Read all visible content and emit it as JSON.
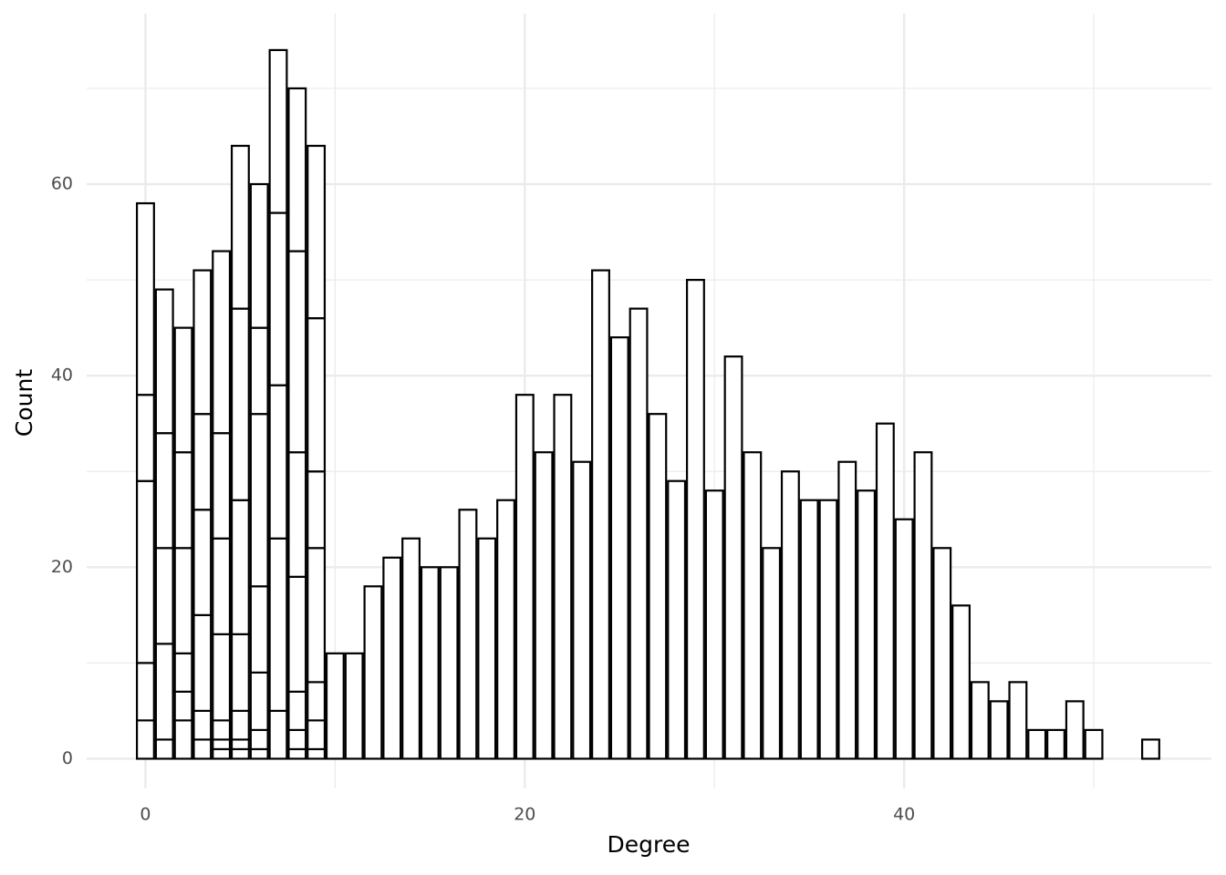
{
  "chart_data": {
    "type": "bar",
    "x_label": "Degree",
    "y_label": "Count",
    "x": [
      0,
      1,
      2,
      3,
      4,
      5,
      6,
      7,
      8,
      9,
      10,
      11,
      12,
      13,
      14,
      15,
      16,
      17,
      18,
      19,
      20,
      21,
      22,
      23,
      24,
      25,
      26,
      27,
      28,
      29,
      30,
      31,
      32,
      33,
      34,
      35,
      36,
      37,
      38,
      39,
      40,
      41,
      42,
      43,
      44,
      45,
      46,
      47,
      48,
      49,
      50,
      53
    ],
    "values": [
      [
        4,
        6,
        19,
        9,
        20
      ],
      [
        2,
        10,
        10,
        12,
        15
      ],
      [
        4,
        3,
        4,
        11,
        10,
        13
      ],
      [
        2,
        3,
        10,
        11,
        10,
        15
      ],
      [
        1,
        1,
        2,
        9,
        10,
        11,
        19
      ],
      [
        1,
        1,
        3,
        8,
        14,
        20,
        17
      ],
      [
        1,
        2,
        6,
        9,
        18,
        9,
        15
      ],
      [
        5,
        18,
        16,
        18,
        17
      ],
      [
        1,
        2,
        4,
        12,
        13,
        21,
        17
      ],
      [
        1,
        3,
        4,
        14,
        8,
        16,
        18
      ],
      [
        11
      ],
      [
        11
      ],
      [
        18
      ],
      [
        21
      ],
      [
        23
      ],
      [
        20
      ],
      [
        20
      ],
      [
        26
      ],
      [
        23
      ],
      [
        27
      ],
      [
        38
      ],
      [
        32
      ],
      [
        38
      ],
      [
        31
      ],
      [
        51
      ],
      [
        44
      ],
      [
        47
      ],
      [
        36
      ],
      [
        29
      ],
      [
        50
      ],
      [
        28
      ],
      [
        42
      ],
      [
        32
      ],
      [
        22
      ],
      [
        30
      ],
      [
        27
      ],
      [
        27
      ],
      [
        31
      ],
      [
        28
      ],
      [
        35
      ],
      [
        25
      ],
      [
        32
      ],
      [
        22
      ],
      [
        16
      ],
      [
        8
      ],
      [
        6
      ],
      [
        8
      ],
      [
        3
      ],
      [
        3
      ],
      [
        6
      ],
      [
        3
      ],
      [
        2
      ]
    ],
    "color": "#ffffff",
    "edge_color": "#000000",
    "xlim": [
      -3.1,
      56.2
    ],
    "ylim": [
      -3.1,
      77.8
    ],
    "xticks": [
      0,
      20,
      40
    ],
    "yticks": [
      0,
      20,
      40,
      60
    ],
    "x_minor_grid": [
      10,
      30,
      50
    ],
    "y_minor_grid": [
      10,
      30,
      50,
      70
    ],
    "grid": true
  }
}
